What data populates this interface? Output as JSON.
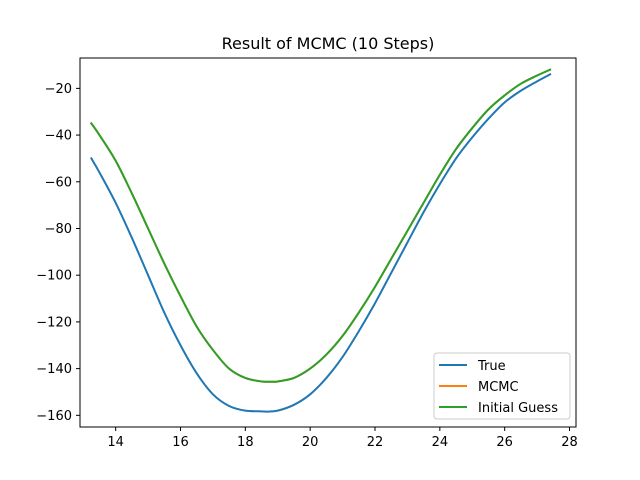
{
  "chart_data": {
    "type": "line",
    "title": "Result of MCMC (10 Steps)",
    "xlabel": "",
    "ylabel": "",
    "xlim": [
      12.9,
      28.2
    ],
    "ylim": [
      -165,
      -7
    ],
    "xticks": [
      14,
      16,
      18,
      20,
      22,
      24,
      26,
      28
    ],
    "yticks": [
      -160,
      -140,
      -120,
      -100,
      -80,
      -60,
      -40,
      -20
    ],
    "grid": false,
    "legend_position": "lower-right",
    "series": [
      {
        "name": "True",
        "color": "#1f77b4",
        "x": [
          13.25,
          13.5,
          14.0,
          14.5,
          15.0,
          15.5,
          16.0,
          16.5,
          17.0,
          17.5,
          18.0,
          18.5,
          18.7,
          19.0,
          19.5,
          20.0,
          20.5,
          21.0,
          21.5,
          22.0,
          22.5,
          23.0,
          23.5,
          24.0,
          24.5,
          25.0,
          25.5,
          26.0,
          26.5,
          27.0,
          27.4
        ],
        "y": [
          -50,
          -56,
          -69,
          -84,
          -100,
          -116,
          -130,
          -142,
          -151,
          -156,
          -158,
          -158.3,
          -158.4,
          -158,
          -155.5,
          -151,
          -144,
          -135,
          -124,
          -112,
          -99,
          -86,
          -73,
          -61,
          -50,
          -41,
          -33,
          -26,
          -21,
          -17,
          -14
        ]
      },
      {
        "name": "MCMC",
        "color": "#ff7f0e",
        "x": [
          13.25,
          13.5,
          14.0,
          14.5,
          15.0,
          15.5,
          16.0,
          16.5,
          17.0,
          17.5,
          18.0,
          18.5,
          18.9,
          19.0,
          19.5,
          20.0,
          20.5,
          21.0,
          21.5,
          22.0,
          22.5,
          23.0,
          23.5,
          24.0,
          24.5,
          25.0,
          25.5,
          26.0,
          26.5,
          27.0,
          27.4
        ],
        "y": [
          -35,
          -40,
          -51,
          -65,
          -80,
          -95,
          -109,
          -122,
          -132,
          -140,
          -144,
          -145.5,
          -145.6,
          -145.5,
          -144,
          -140,
          -134,
          -126,
          -116,
          -105,
          -93,
          -81,
          -69,
          -57,
          -46,
          -37,
          -29,
          -23,
          -18,
          -14.5,
          -12
        ]
      },
      {
        "name": "Initial Guess",
        "color": "#2ca02c",
        "x": [
          13.25,
          13.5,
          14.0,
          14.5,
          15.0,
          15.5,
          16.0,
          16.5,
          17.0,
          17.5,
          18.0,
          18.5,
          18.9,
          19.0,
          19.5,
          20.0,
          20.5,
          21.0,
          21.5,
          22.0,
          22.5,
          23.0,
          23.5,
          24.0,
          24.5,
          25.0,
          25.5,
          26.0,
          26.5,
          27.0,
          27.4
        ],
        "y": [
          -35,
          -40,
          -51,
          -65,
          -80,
          -95,
          -109,
          -122,
          -132,
          -140,
          -144,
          -145.5,
          -145.6,
          -145.5,
          -144,
          -140,
          -134,
          -126,
          -116,
          -105,
          -93,
          -81,
          -69,
          -57,
          -46,
          -37,
          -29,
          -23,
          -18,
          -14.5,
          -12
        ]
      }
    ]
  }
}
